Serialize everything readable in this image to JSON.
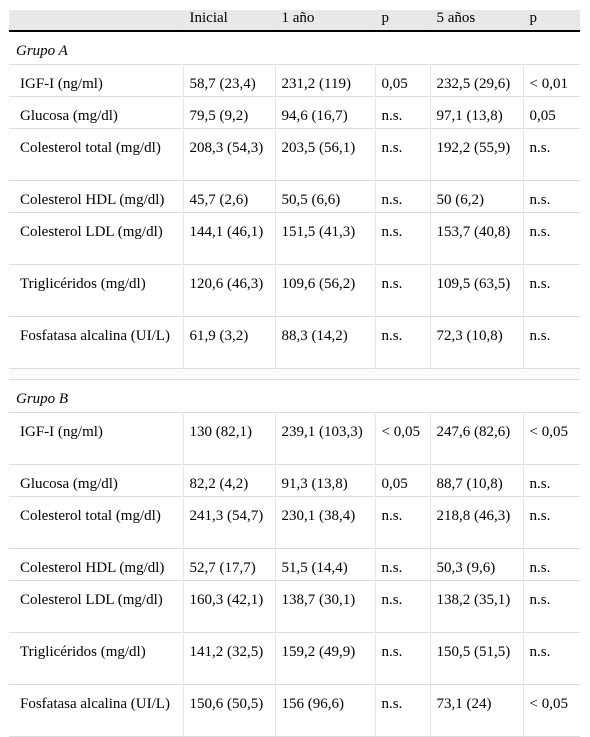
{
  "headers": [
    "",
    "Inicial",
    "1 año",
    "p",
    "5 años",
    "p"
  ],
  "groups": [
    {
      "name": "Grupo A",
      "rows": [
        [
          "IGF-I (ng/ml)",
          "58,7 (23,4)",
          "231,2 (119)",
          "0,05",
          "232,5 (29,6)",
          "< 0,01"
        ],
        [
          "Glucosa (mg/dl)",
          "79,5 (9,2)",
          "94,6 (16,7)",
          "n.s.",
          "97,1 (13,8)",
          "0,05"
        ],
        [
          "Colesterol total (mg/dl)",
          "208,3 (54,3)",
          "203,5 (56,1)",
          "n.s.",
          "192,2 (55,9)",
          "n.s."
        ],
        [
          "Colesterol HDL (mg/dl)",
          "45,7 (2,6)",
          "50,5 (6,6)",
          "n.s.",
          "50 (6,2)",
          "n.s."
        ],
        [
          "Colesterol LDL (mg/dl)",
          "144,1 (46,1)",
          "151,5 (41,3)",
          "n.s.",
          "153,7 (40,8)",
          "n.s."
        ],
        [
          "Triglicéridos (mg/dl)",
          "120,6 (46,3)",
          "109,6 (56,2)",
          "n.s.",
          "109,5 (63,5)",
          "n.s."
        ],
        [
          "Fosfatasa alcalina (UI/L)",
          "61,9 (3,2)",
          "88,3 (14,2)",
          "n.s.",
          "72,3 (10,8)",
          "n.s."
        ]
      ]
    },
    {
      "name": "Grupo B",
      "rows": [
        [
          "IGF-I (ng/ml)",
          "130 (82,1)",
          "239,1 (103,3)",
          "< 0,05",
          "247,6 (82,6)",
          "< 0,05"
        ],
        [
          "Glucosa (mg/dl)",
          "82,2 (4,2)",
          "91,3 (13,8)",
          "0,05",
          "88,7 (10,8)",
          "n.s."
        ],
        [
          "Colesterol total (mg/dl)",
          "241,3 (54,7)",
          "230,1 (38,4)",
          "n.s.",
          "218,8 (46,3)",
          "n.s."
        ],
        [
          "Colesterol HDL (mg/dl)",
          "52,7 (17,7)",
          "51,5 (14,4)",
          "n.s.",
          "50,3 (9,6)",
          "n.s."
        ],
        [
          "Colesterol LDL (mg/dl)",
          "160,3 (42,1)",
          "138,7 (30,1)",
          "n.s.",
          "138,2 (35,1)",
          "n.s."
        ],
        [
          "Triglicéridos (mg/dl)",
          "141,2 (32,5)",
          "159,2 (49,9)",
          "n.s.",
          "150,5 (51,5)",
          "n.s."
        ],
        [
          "Fosfatasa alcalina (UI/L)",
          "150,6 (50,5)",
          "156 (96,6)",
          "n.s.",
          "73,1 (24)",
          "< 0,05"
        ]
      ]
    }
  ]
}
